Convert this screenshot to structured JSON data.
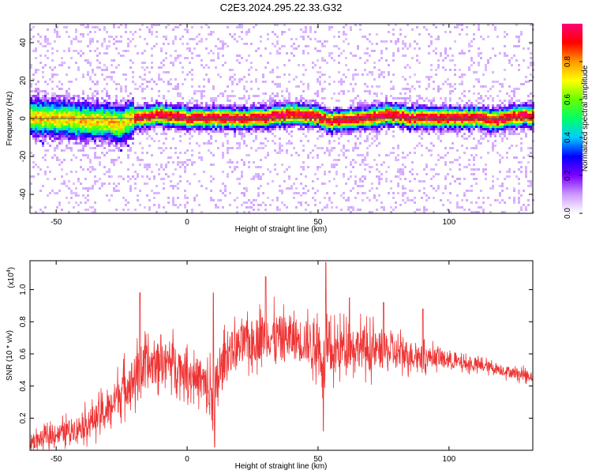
{
  "figure": {
    "title": "C2E3.2024.295.22.33.G32"
  },
  "chart_data": [
    {
      "type": "heatmap",
      "title": "C2E3.2024.295.22.33.G32",
      "xlabel": "Height of straight line (km)",
      "ylabel": "Frequency (Hz)",
      "xlim": [
        -60,
        132
      ],
      "ylim": [
        -50,
        50
      ],
      "x_ticks": [
        -50,
        0,
        50,
        100
      ],
      "y_ticks": [
        -40,
        -20,
        0,
        20,
        40
      ],
      "grid": false,
      "colorbar": {
        "label": "Normalized spectral amplitude",
        "range": [
          0.0,
          1.0
        ],
        "ticks": [
          "0.0",
          "0.2",
          "0.4",
          "0.6",
          "0.8"
        ],
        "colormap": [
          "#ffffff",
          "#cc99ff",
          "#7a00ff",
          "#0000ff",
          "#00ccff",
          "#00ff66",
          "#66ff00",
          "#ffff00",
          "#ff9900",
          "#ff0000",
          "#ff0077"
        ]
      },
      "ridge": {
        "description_of_band": "Narrow high-amplitude band centered near 0 Hz across the full height range",
        "center_freq_points": [
          [
            -60,
            0.5
          ],
          [
            -50,
            0.0
          ],
          [
            -40,
            -1.0
          ],
          [
            -30,
            -2.0
          ],
          [
            -25,
            -3.5
          ],
          [
            -22,
            0.0
          ],
          [
            -15,
            1.0
          ],
          [
            -10,
            2.0
          ],
          [
            0,
            0.0
          ],
          [
            10,
            0.5
          ],
          [
            20,
            0.0
          ],
          [
            30,
            0.5
          ],
          [
            40,
            2.5
          ],
          [
            50,
            1.0
          ],
          [
            55,
            -1.5
          ],
          [
            60,
            -0.5
          ],
          [
            70,
            0.5
          ],
          [
            75,
            2.0
          ],
          [
            80,
            1.5
          ],
          [
            85,
            0.0
          ],
          [
            90,
            0.5
          ],
          [
            100,
            0.0
          ],
          [
            110,
            0.5
          ],
          [
            118,
            -1.0
          ],
          [
            125,
            1.0
          ],
          [
            132,
            1.5
          ]
        ]
      }
    },
    {
      "type": "line",
      "xlabel": "Height of straight line (km)",
      "ylabel": "SNR (10 * v/v)",
      "y_multiplier": "(x10",
      "y_multiplier_exp": "4",
      "y_multiplier_close": ")",
      "xlim": [
        -60,
        132
      ],
      "ylim": [
        0.0,
        1.18
      ],
      "x_ticks": [
        -50,
        0,
        50,
        100
      ],
      "y_ticks": [
        "0.2",
        "0.4",
        "0.6",
        "0.8",
        "1.0"
      ],
      "grid": false,
      "series": [
        {
          "color": "#ee3333",
          "envelope": {
            "x": [
              -60,
              -50,
              -40,
              -30,
              -25,
              -20,
              -15,
              -10,
              -5,
              0,
              5,
              8,
              10,
              12,
              15,
              20,
              25,
              30,
              35,
              40,
              45,
              50,
              52,
              55,
              60,
              65,
              70,
              75,
              80,
              85,
              90,
              95,
              100,
              105,
              110,
              115,
              120,
              125,
              132
            ],
            "base": [
              0.05,
              0.1,
              0.15,
              0.25,
              0.38,
              0.45,
              0.52,
              0.55,
              0.55,
              0.48,
              0.45,
              0.35,
              0.3,
              0.45,
              0.6,
              0.65,
              0.68,
              0.72,
              0.7,
              0.7,
              0.68,
              0.65,
              0.55,
              0.6,
              0.65,
              0.65,
              0.62,
              0.62,
              0.6,
              0.6,
              0.58,
              0.58,
              0.56,
              0.54,
              0.53,
              0.52,
              0.5,
              0.48,
              0.46
            ],
            "amp": [
              0.08,
              0.1,
              0.14,
              0.18,
              0.22,
              0.25,
              0.25,
              0.22,
              0.22,
              0.2,
              0.22,
              0.3,
              0.35,
              0.25,
              0.22,
              0.22,
              0.24,
              0.25,
              0.25,
              0.24,
              0.24,
              0.26,
              0.3,
              0.26,
              0.22,
              0.22,
              0.22,
              0.2,
              0.18,
              0.15,
              0.12,
              0.1,
              0.09,
              0.07,
              0.07,
              0.06,
              0.06,
              0.06,
              0.06
            ]
          },
          "peaks": [
            [
              -18,
              0.98
            ],
            [
              -10,
              0.72
            ],
            [
              10,
              0.98
            ],
            [
              30,
              1.08
            ],
            [
              53,
              1.17
            ],
            [
              62,
              0.95
            ],
            [
              75,
              0.92
            ],
            [
              90,
              0.88
            ],
            [
              10.5,
              0.02
            ],
            [
              52,
              0.12
            ]
          ]
        }
      ]
    }
  ]
}
